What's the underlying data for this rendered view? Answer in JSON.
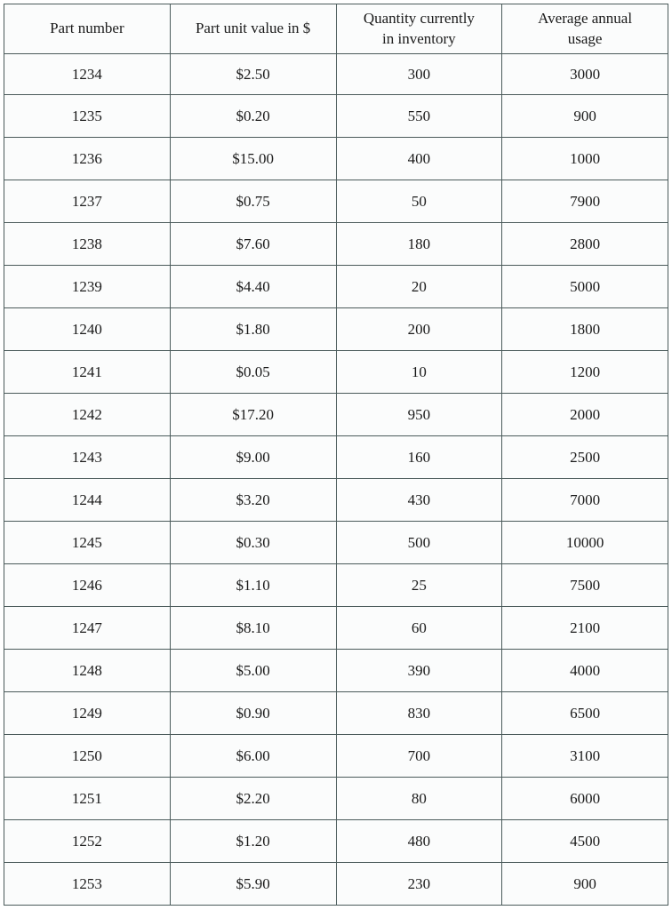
{
  "table": {
    "type": "table",
    "border_color": "#4a5a5a",
    "background_color": "#fbfcfc",
    "text_color": "#1a1a1a",
    "font_family": "Times New Roman",
    "header_fontsize": 17,
    "cell_fontsize": 17,
    "columns": [
      {
        "key": "part_number",
        "label": "Part number",
        "width_pct": 25
      },
      {
        "key": "unit_value",
        "label": "Part unit value in $",
        "width_pct": 25
      },
      {
        "key": "qty_inventory",
        "label": "Quantity currently in inventory",
        "width_pct": 25,
        "multiline": true
      },
      {
        "key": "annual_usage",
        "label": "Average annual usage",
        "width_pct": 25,
        "multiline": true
      }
    ],
    "rows": [
      {
        "part_number": "1234",
        "unit_value": "$2.50",
        "qty_inventory": "300",
        "annual_usage": "3000"
      },
      {
        "part_number": "1235",
        "unit_value": "$0.20",
        "qty_inventory": "550",
        "annual_usage": "900"
      },
      {
        "part_number": "1236",
        "unit_value": "$15.00",
        "qty_inventory": "400",
        "annual_usage": "1000"
      },
      {
        "part_number": "1237",
        "unit_value": "$0.75",
        "qty_inventory": "50",
        "annual_usage": "7900"
      },
      {
        "part_number": "1238",
        "unit_value": "$7.60",
        "qty_inventory": "180",
        "annual_usage": "2800"
      },
      {
        "part_number": "1239",
        "unit_value": "$4.40",
        "qty_inventory": "20",
        "annual_usage": "5000"
      },
      {
        "part_number": "1240",
        "unit_value": "$1.80",
        "qty_inventory": "200",
        "annual_usage": "1800"
      },
      {
        "part_number": "1241",
        "unit_value": "$0.05",
        "qty_inventory": "10",
        "annual_usage": "1200"
      },
      {
        "part_number": "1242",
        "unit_value": "$17.20",
        "qty_inventory": "950",
        "annual_usage": "2000"
      },
      {
        "part_number": "1243",
        "unit_value": "$9.00",
        "qty_inventory": "160",
        "annual_usage": "2500"
      },
      {
        "part_number": "1244",
        "unit_value": "$3.20",
        "qty_inventory": "430",
        "annual_usage": "7000"
      },
      {
        "part_number": "1245",
        "unit_value": "$0.30",
        "qty_inventory": "500",
        "annual_usage": "10000"
      },
      {
        "part_number": "1246",
        "unit_value": "$1.10",
        "qty_inventory": "25",
        "annual_usage": "7500"
      },
      {
        "part_number": "1247",
        "unit_value": "$8.10",
        "qty_inventory": "60",
        "annual_usage": "2100"
      },
      {
        "part_number": "1248",
        "unit_value": "$5.00",
        "qty_inventory": "390",
        "annual_usage": "4000"
      },
      {
        "part_number": "1249",
        "unit_value": "$0.90",
        "qty_inventory": "830",
        "annual_usage": "6500"
      },
      {
        "part_number": "1250",
        "unit_value": "$6.00",
        "qty_inventory": "700",
        "annual_usage": "3100"
      },
      {
        "part_number": "1251",
        "unit_value": "$2.20",
        "qty_inventory": "80",
        "annual_usage": "6000"
      },
      {
        "part_number": "1252",
        "unit_value": "$1.20",
        "qty_inventory": "480",
        "annual_usage": "4500"
      },
      {
        "part_number": "1253",
        "unit_value": "$5.90",
        "qty_inventory": "230",
        "annual_usage": "900"
      }
    ]
  }
}
